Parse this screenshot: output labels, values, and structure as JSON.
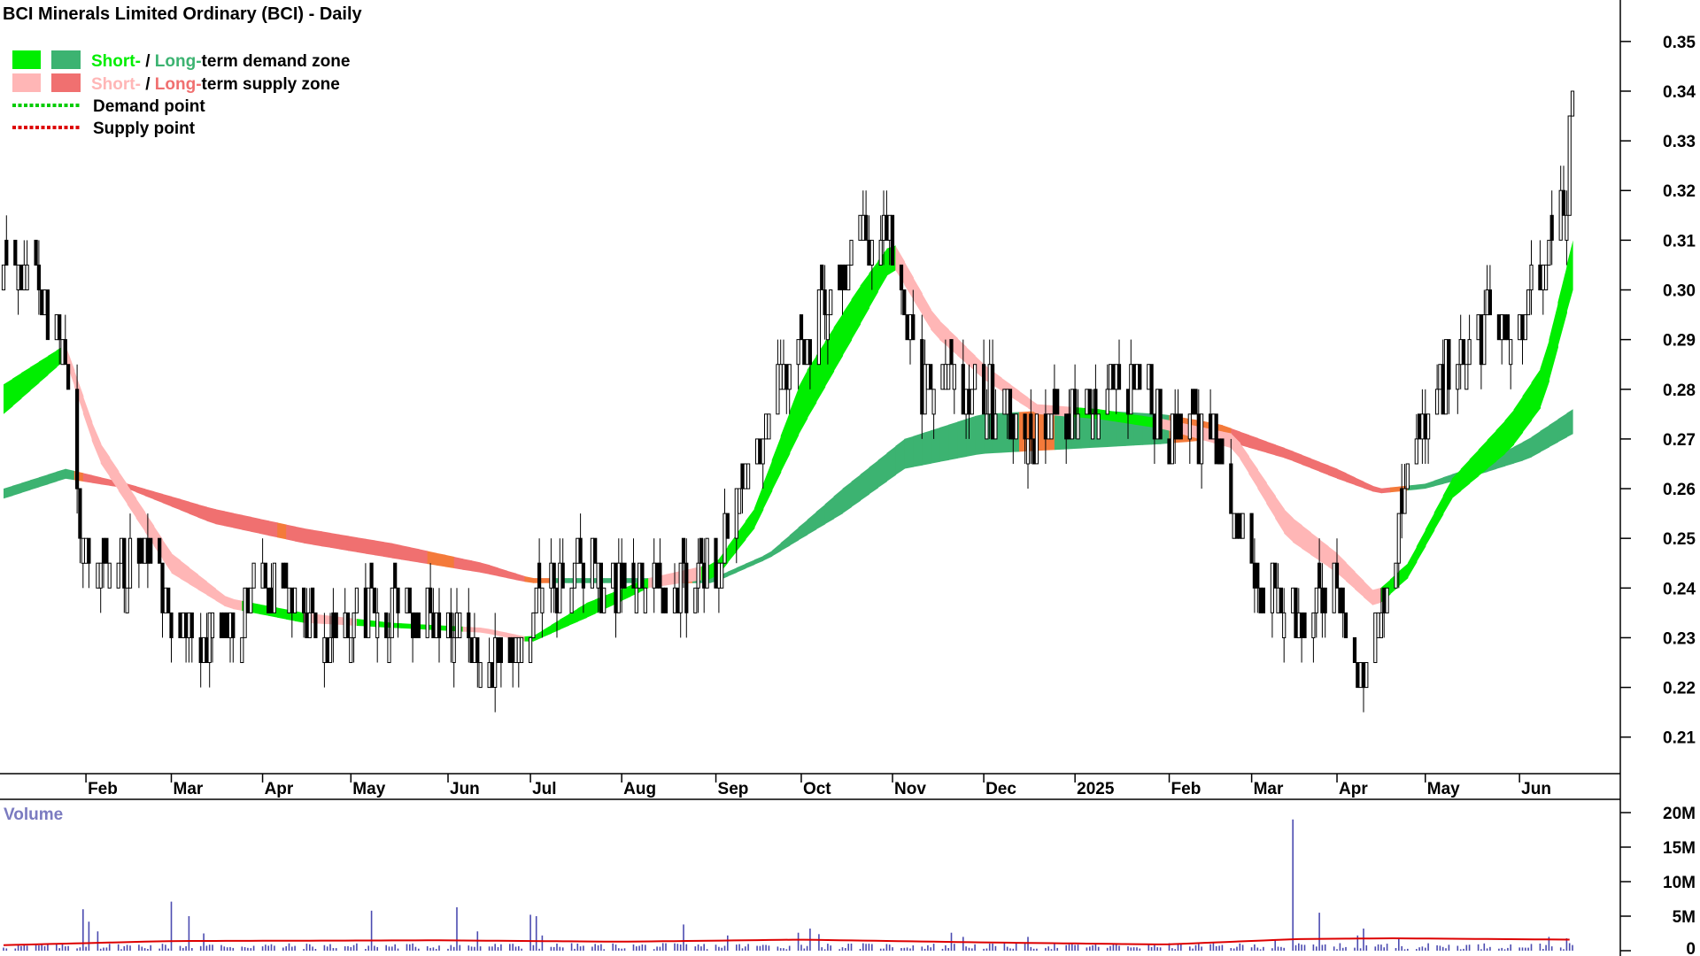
{
  "chart_data": {
    "type": "candlestick",
    "title": "BCI Minerals Limited Ordinary (BCI) - Daily",
    "legend": {
      "placement": "top-left",
      "items": [
        {
          "id": "demand",
          "short": "Short-",
          "sep": " / ",
          "long": "Long-",
          "rest": "term demand zone",
          "short_color": "#00ee00",
          "long_color": "#3cb371"
        },
        {
          "id": "supply",
          "short": "Short-",
          "sep": " / ",
          "long": "Long-",
          "rest": "term supply zone",
          "short_color": "#ffb6b6",
          "long_color": "#f07070"
        },
        {
          "id": "demand-point",
          "label": "Demand point",
          "color": "#00cc00"
        },
        {
          "id": "supply-point",
          "label": "Supply point",
          "color": "#dd0000"
        }
      ]
    },
    "y_axis": {
      "min": 0.203,
      "max": 0.353,
      "ticks": [
        "0.35",
        "0.34",
        "0.33",
        "0.32",
        "0.31",
        "0.30",
        "0.29",
        "0.28",
        "0.27",
        "0.26",
        "0.25",
        "0.24",
        "0.23",
        "0.22",
        "0.21"
      ]
    },
    "x_axis": {
      "start": "2024-01-04",
      "end": "2025-06-20",
      "labels": [
        {
          "date": "2024-02-01",
          "text": "Feb"
        },
        {
          "date": "2024-03-01",
          "text": "Mar"
        },
        {
          "date": "2024-04-01",
          "text": "Apr"
        },
        {
          "date": "2024-05-01",
          "text": "May"
        },
        {
          "date": "2024-06-03",
          "text": "Jun"
        },
        {
          "date": "2024-07-01",
          "text": "Jul"
        },
        {
          "date": "2024-08-01",
          "text": "Aug"
        },
        {
          "date": "2024-09-02",
          "text": "Sep"
        },
        {
          "date": "2024-10-01",
          "text": "Oct"
        },
        {
          "date": "2024-11-01",
          "text": "Nov"
        },
        {
          "date": "2024-12-02",
          "text": "Dec"
        },
        {
          "date": "2025-01-02",
          "text": "2025"
        },
        {
          "date": "2025-02-03",
          "text": "Feb"
        },
        {
          "date": "2025-03-03",
          "text": "Mar"
        },
        {
          "date": "2025-04-01",
          "text": "Apr"
        },
        {
          "date": "2025-05-01",
          "text": "May"
        },
        {
          "date": "2025-06-02",
          "text": "Jun"
        }
      ]
    },
    "price_anchors": [
      [
        "2024-01-04",
        0.305
      ],
      [
        "2024-01-15",
        0.3
      ],
      [
        "2024-01-25",
        0.285
      ],
      [
        "2024-02-01",
        0.245
      ],
      [
        "2024-02-15",
        0.245
      ],
      [
        "2024-02-26",
        0.245
      ],
      [
        "2024-03-01",
        0.232
      ],
      [
        "2024-03-12",
        0.227
      ],
      [
        "2024-03-25",
        0.236
      ],
      [
        "2024-04-08",
        0.241
      ],
      [
        "2024-04-22",
        0.229
      ],
      [
        "2024-05-06",
        0.235
      ],
      [
        "2024-05-20",
        0.234
      ],
      [
        "2024-06-03",
        0.235
      ],
      [
        "2024-06-17",
        0.226
      ],
      [
        "2024-06-28",
        0.228
      ],
      [
        "2024-07-08",
        0.242
      ],
      [
        "2024-07-22",
        0.243
      ],
      [
        "2024-08-05",
        0.243
      ],
      [
        "2024-08-19",
        0.238
      ],
      [
        "2024-09-02",
        0.245
      ],
      [
        "2024-09-12",
        0.258
      ],
      [
        "2024-09-25",
        0.282
      ],
      [
        "2024-10-07",
        0.295
      ],
      [
        "2024-10-21",
        0.31
      ],
      [
        "2024-10-31",
        0.312
      ],
      [
        "2024-11-11",
        0.282
      ],
      [
        "2024-11-25",
        0.283
      ],
      [
        "2024-12-09",
        0.276
      ],
      [
        "2024-12-20",
        0.268
      ],
      [
        "2025-01-06",
        0.28
      ],
      [
        "2025-01-20",
        0.282
      ],
      [
        "2025-02-03",
        0.272
      ],
      [
        "2025-02-17",
        0.27
      ],
      [
        "2025-03-03",
        0.244
      ],
      [
        "2025-03-17",
        0.235
      ],
      [
        "2025-04-01",
        0.24
      ],
      [
        "2025-04-09",
        0.221
      ],
      [
        "2025-04-17",
        0.238
      ],
      [
        "2025-04-28",
        0.27
      ],
      [
        "2025-05-09",
        0.284
      ],
      [
        "2025-05-22",
        0.293
      ],
      [
        "2025-06-02",
        0.292
      ],
      [
        "2025-06-10",
        0.31
      ],
      [
        "2025-06-18",
        0.32
      ],
      [
        "2025-06-20",
        0.34
      ]
    ],
    "zones": {
      "short_edge_a": [
        [
          "2024-01-04",
          0.281
        ],
        [
          "2024-01-25",
          0.289
        ],
        [
          "2024-02-05",
          0.27
        ],
        [
          "2024-03-01",
          0.247
        ],
        [
          "2024-03-20",
          0.238
        ],
        [
          "2024-04-15",
          0.235
        ],
        [
          "2024-05-15",
          0.233
        ],
        [
          "2024-06-15",
          0.232
        ],
        [
          "2024-07-01",
          0.23
        ],
        [
          "2024-07-20",
          0.237
        ],
        [
          "2024-08-10",
          0.242
        ],
        [
          "2024-09-02",
          0.245
        ],
        [
          "2024-09-15",
          0.256
        ],
        [
          "2024-10-01",
          0.282
        ],
        [
          "2024-10-20",
          0.3
        ],
        [
          "2024-11-01",
          0.31
        ],
        [
          "2024-11-15",
          0.295
        ],
        [
          "2024-12-02",
          0.285
        ],
        [
          "2024-12-20",
          0.277
        ],
        [
          "2025-01-10",
          0.276
        ],
        [
          "2025-02-01",
          0.274
        ],
        [
          "2025-02-25",
          0.271
        ],
        [
          "2025-03-15",
          0.255
        ],
        [
          "2025-04-01",
          0.247
        ],
        [
          "2025-04-14",
          0.239
        ],
        [
          "2025-04-25",
          0.245
        ],
        [
          "2025-05-10",
          0.262
        ],
        [
          "2025-05-30",
          0.275
        ],
        [
          "2025-06-10",
          0.285
        ],
        [
          "2025-06-20",
          0.31
        ]
      ],
      "short_edge_b": [
        [
          "2024-01-04",
          0.275
        ],
        [
          "2024-01-25",
          0.286
        ],
        [
          "2024-02-05",
          0.266
        ],
        [
          "2024-03-01",
          0.243
        ],
        [
          "2024-03-20",
          0.236
        ],
        [
          "2024-04-15",
          0.233
        ],
        [
          "2024-05-15",
          0.232
        ],
        [
          "2024-06-15",
          0.231
        ],
        [
          "2024-07-01",
          0.229
        ],
        [
          "2024-07-20",
          0.234
        ],
        [
          "2024-08-10",
          0.24
        ],
        [
          "2024-09-02",
          0.242
        ],
        [
          "2024-09-15",
          0.252
        ],
        [
          "2024-10-01",
          0.272
        ],
        [
          "2024-10-20",
          0.292
        ],
        [
          "2024-11-01",
          0.305
        ],
        [
          "2024-11-15",
          0.291
        ],
        [
          "2024-12-02",
          0.282
        ],
        [
          "2024-12-20",
          0.275
        ],
        [
          "2025-01-10",
          0.274
        ],
        [
          "2025-02-01",
          0.272
        ],
        [
          "2025-02-25",
          0.268
        ],
        [
          "2025-03-15",
          0.25
        ],
        [
          "2025-04-01",
          0.243
        ],
        [
          "2025-04-14",
          0.236
        ],
        [
          "2025-04-25",
          0.242
        ],
        [
          "2025-05-10",
          0.258
        ],
        [
          "2025-05-30",
          0.268
        ],
        [
          "2025-06-10",
          0.277
        ],
        [
          "2025-06-20",
          0.3
        ]
      ],
      "long_edge_a": [
        [
          "2024-01-04",
          0.26
        ],
        [
          "2024-01-25",
          0.264
        ],
        [
          "2024-02-15",
          0.261
        ],
        [
          "2024-03-15",
          0.256
        ],
        [
          "2024-04-15",
          0.252
        ],
        [
          "2024-05-15",
          0.249
        ],
        [
          "2024-06-15",
          0.245
        ],
        [
          "2024-07-01",
          0.242
        ],
        [
          "2024-08-01",
          0.242
        ],
        [
          "2024-09-01",
          0.242
        ],
        [
          "2024-09-20",
          0.247
        ],
        [
          "2024-10-15",
          0.26
        ],
        [
          "2024-11-05",
          0.27
        ],
        [
          "2024-12-01",
          0.275
        ],
        [
          "2025-01-01",
          0.276
        ],
        [
          "2025-02-01",
          0.275
        ],
        [
          "2025-02-20",
          0.273
        ],
        [
          "2025-03-15",
          0.268
        ],
        [
          "2025-04-01",
          0.264
        ],
        [
          "2025-04-15",
          0.26
        ],
        [
          "2025-05-01",
          0.261
        ],
        [
          "2025-05-20",
          0.265
        ],
        [
          "2025-06-05",
          0.27
        ],
        [
          "2025-06-20",
          0.276
        ]
      ],
      "long_edge_b": [
        [
          "2024-01-04",
          0.258
        ],
        [
          "2024-01-25",
          0.262
        ],
        [
          "2024-02-15",
          0.26
        ],
        [
          "2024-03-15",
          0.253
        ],
        [
          "2024-04-15",
          0.249
        ],
        [
          "2024-05-15",
          0.246
        ],
        [
          "2024-06-15",
          0.243
        ],
        [
          "2024-07-01",
          0.241
        ],
        [
          "2024-08-01",
          0.241
        ],
        [
          "2024-09-01",
          0.241
        ],
        [
          "2024-09-20",
          0.246
        ],
        [
          "2024-10-15",
          0.255
        ],
        [
          "2024-11-05",
          0.264
        ],
        [
          "2024-12-01",
          0.267
        ],
        [
          "2025-01-01",
          0.268
        ],
        [
          "2025-02-01",
          0.269
        ],
        [
          "2025-02-20",
          0.27
        ],
        [
          "2025-03-15",
          0.266
        ],
        [
          "2025-04-01",
          0.262
        ],
        [
          "2025-04-15",
          0.259
        ],
        [
          "2025-05-01",
          0.26
        ],
        [
          "2025-05-20",
          0.263
        ],
        [
          "2025-06-05",
          0.266
        ],
        [
          "2025-06-20",
          0.271
        ]
      ]
    },
    "colors": {
      "short_demand": "#00ee00",
      "long_demand": "#3cb371",
      "short_supply": "#ffb6b6",
      "long_supply": "#f07070",
      "long_supply_near": "#f47a3a",
      "candle": "#000000",
      "volume_bar": "#4b4bb0",
      "volume_avg": "#dd0000",
      "volume_label": "#7b7bc0"
    },
    "volume": {
      "label": "Volume",
      "ticks": [
        {
          "value": 20,
          "text": "20M"
        },
        {
          "value": 15,
          "text": "15M"
        },
        {
          "value": 10,
          "text": "10M"
        },
        {
          "value": 5,
          "text": "5M"
        },
        {
          "value": 0,
          "text": "0"
        }
      ],
      "max": 20,
      "spikes_millions": [
        [
          "2024-01-31",
          6.0
        ],
        [
          "2024-02-02",
          4.2
        ],
        [
          "2024-02-05",
          2.8
        ],
        [
          "2024-03-01",
          7.1
        ],
        [
          "2024-03-07",
          5.0
        ],
        [
          "2024-03-12",
          2.5
        ],
        [
          "2024-05-08",
          5.8
        ],
        [
          "2024-06-06",
          6.3
        ],
        [
          "2024-06-13",
          2.8
        ],
        [
          "2024-07-01",
          5.2
        ],
        [
          "2024-07-03",
          5.0
        ],
        [
          "2024-07-05",
          2.2
        ],
        [
          "2024-08-22",
          3.8
        ],
        [
          "2024-09-06",
          2.2
        ],
        [
          "2024-09-30",
          2.6
        ],
        [
          "2024-10-04",
          3.2
        ],
        [
          "2024-10-07",
          2.4
        ],
        [
          "2024-11-21",
          2.6
        ],
        [
          "2024-11-25",
          2.0
        ],
        [
          "2024-12-17",
          2.0
        ],
        [
          "2025-03-11",
          1.5
        ],
        [
          "2025-03-17",
          19.0
        ],
        [
          "2025-03-26",
          5.5
        ],
        [
          "2025-04-08",
          2.2
        ],
        [
          "2025-04-10",
          3.2
        ],
        [
          "2025-04-22",
          1.8
        ],
        [
          "2025-06-12",
          2.0
        ],
        [
          "2025-06-18",
          1.8
        ]
      ],
      "avg_millions": [
        [
          "2024-01-04",
          0.8
        ],
        [
          "2024-03-01",
          1.4
        ],
        [
          "2024-06-01",
          1.5
        ],
        [
          "2024-08-01",
          1.3
        ],
        [
          "2024-10-01",
          1.6
        ],
        [
          "2024-12-01",
          1.2
        ],
        [
          "2025-02-01",
          0.9
        ],
        [
          "2025-03-20",
          1.7
        ],
        [
          "2025-04-20",
          1.8
        ],
        [
          "2025-06-20",
          1.6
        ]
      ]
    }
  }
}
